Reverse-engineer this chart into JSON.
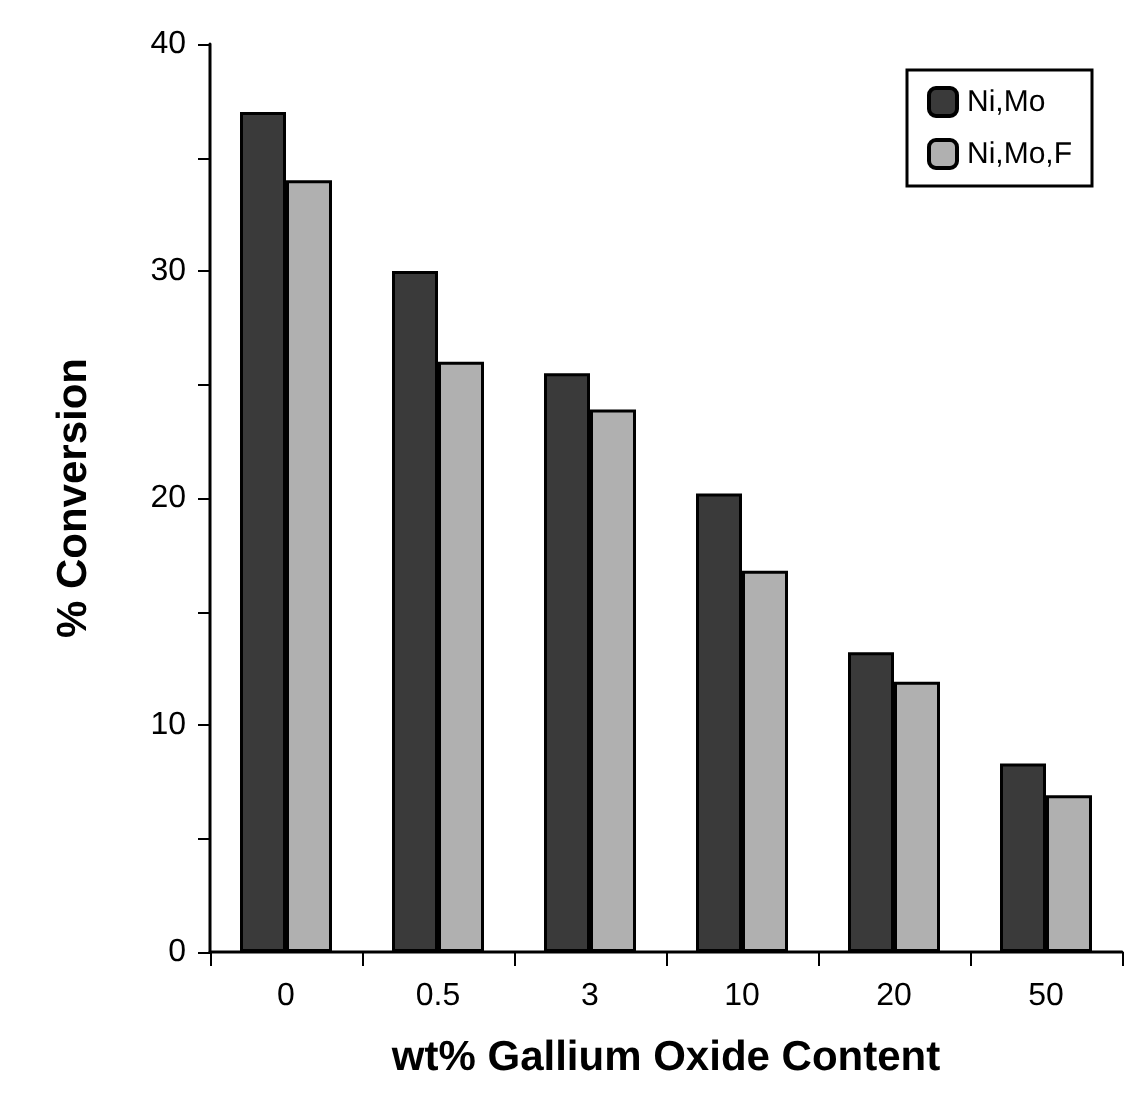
{
  "chart_data": {
    "type": "bar",
    "xlabel": "wt% Gallium Oxide Content",
    "ylabel": "% Conversion",
    "categories": [
      "0",
      "0.5",
      "3",
      "10",
      "20",
      "50"
    ],
    "series": [
      {
        "name": "Ni,Mo",
        "color": "#3a3a3a",
        "values": [
          37,
          30,
          25.5,
          20.2,
          13.2,
          8.3
        ]
      },
      {
        "name": "Ni,Mo,F",
        "color": "#b0b0b0",
        "values": [
          34,
          26,
          23.9,
          16.8,
          11.9,
          6.9
        ]
      }
    ],
    "ylim": [
      0,
      40
    ],
    "yticks": [
      0,
      {
        "value": 5,
        "label": null
      },
      10,
      {
        "value": 15,
        "label": null
      },
      20,
      {
        "value": 25,
        "label": null
      },
      30,
      {
        "value": 35,
        "label": null
      },
      40
    ],
    "legend": "top right",
    "grid": false
  }
}
